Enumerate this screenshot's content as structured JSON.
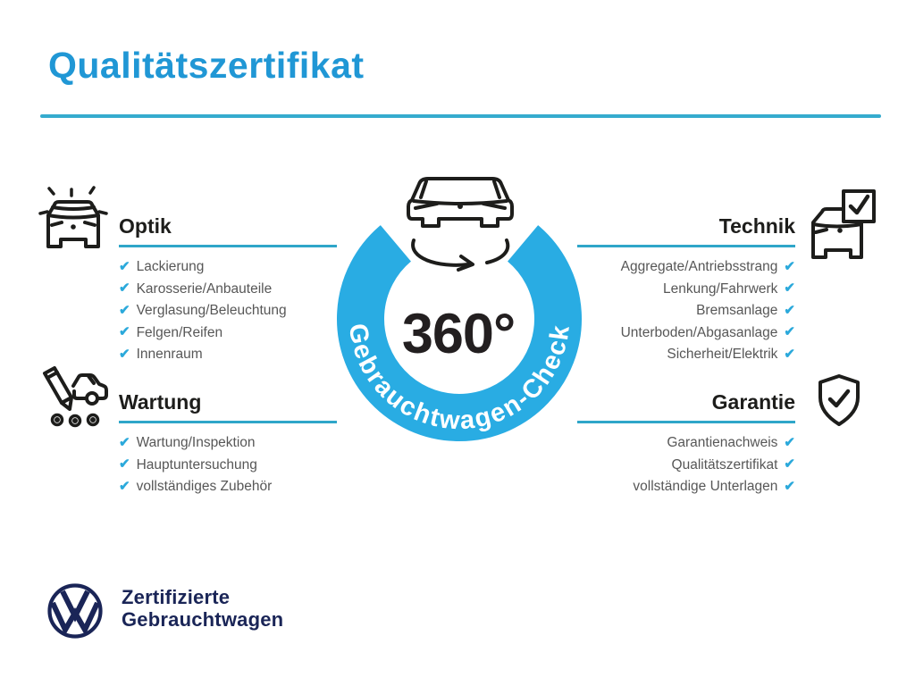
{
  "title": "Qualitätszertifikat",
  "badge": {
    "degree_label": "360°",
    "ring_label": "Gebrauchtwagen-Check",
    "icon": "rotating-car-icon"
  },
  "sections": {
    "optik": {
      "label": "Optik",
      "icon": "sparkling-car-icon",
      "items": [
        "Lackierung",
        "Karosserie/Anbauteile",
        "Verglasung/Beleuchtung",
        "Felgen/Reifen",
        "Innenraum"
      ]
    },
    "wartung": {
      "label": "Wartung",
      "icon": "service-checklist-icon",
      "items": [
        "Wartung/Inspektion",
        "Hauptuntersuchung",
        "vollständiges Zubehör"
      ]
    },
    "technik": {
      "label": "Technik",
      "icon": "car-checkbox-icon",
      "items": [
        "Aggregate/Antriebsstrang",
        "Lenkung/Fahrwerk",
        "Bremsanlage",
        "Unterboden/Abgasanlage",
        "Sicherheit/Elektrik"
      ]
    },
    "garantie": {
      "label": "Garantie",
      "icon": "shield-check-icon",
      "items": [
        "Garantienachweis",
        "Qualitätszertifikat",
        "vollständige Unterlagen"
      ]
    }
  },
  "footer": {
    "logo": "vw-logo",
    "brand_line1": "Zertifizierte",
    "brand_line2": "Gebrauchtwagen"
  },
  "colors": {
    "title_blue": "#2097D5",
    "ring_cyan": "#29ACE3",
    "check_cyan": "#2BA9DB",
    "underline_cyan": "#2FA6C9",
    "dark_navy": "#1A2557",
    "heading_dark": "#1d1d1b",
    "item_gray": "#575757"
  }
}
